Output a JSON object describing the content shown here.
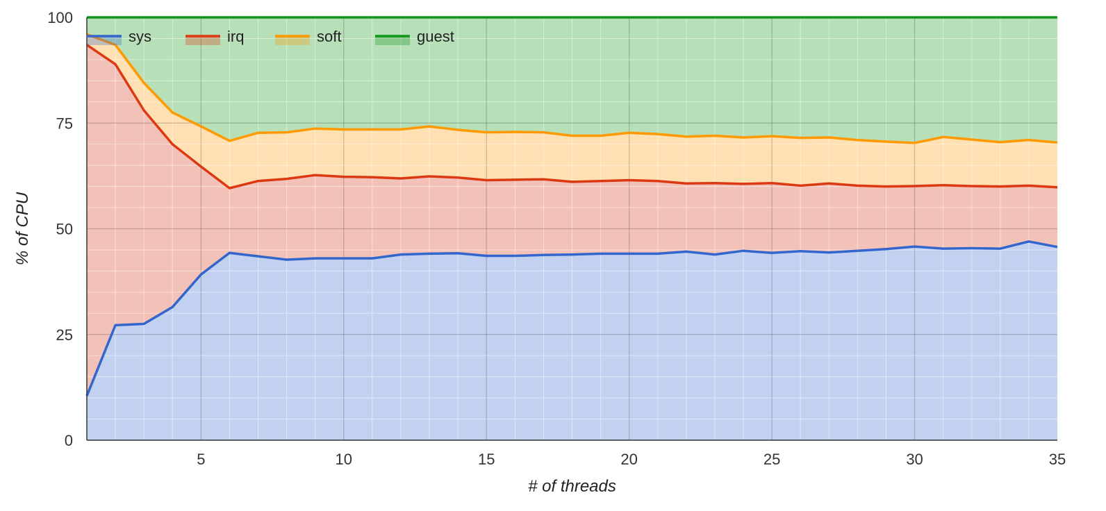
{
  "chart_data": {
    "type": "area",
    "stacked": true,
    "xlabel": "# of threads",
    "ylabel": "% of CPU",
    "xlim": [
      1,
      35
    ],
    "ylim": [
      0,
      100
    ],
    "x_ticks": [
      5,
      10,
      15,
      20,
      25,
      30,
      35
    ],
    "y_ticks": [
      0,
      25,
      50,
      75,
      100
    ],
    "grid": true,
    "legend_position": "top-left",
    "x": [
      1,
      2,
      3,
      4,
      5,
      6,
      7,
      8,
      9,
      10,
      11,
      12,
      13,
      14,
      15,
      16,
      17,
      18,
      19,
      20,
      21,
      22,
      23,
      24,
      25,
      26,
      27,
      28,
      29,
      30,
      31,
      32,
      33,
      34,
      35
    ],
    "series": [
      {
        "name": "sys",
        "color": "#3366cc",
        "fill": "#c3d1f0",
        "values": [
          10.5,
          27.2,
          27.5,
          31.5,
          39.2,
          44.3,
          43.5,
          42.7,
          43.0,
          43.0,
          43.0,
          43.9,
          44.1,
          44.2,
          43.6,
          43.6,
          43.8,
          43.9,
          44.1,
          44.1,
          44.1,
          44.6,
          43.9,
          44.8,
          44.3,
          44.7,
          44.4,
          44.8,
          45.2,
          45.8,
          45.3,
          45.4,
          45.3,
          47.0,
          45.7
        ]
      },
      {
        "name": "irq",
        "color": "#dc3912",
        "fill": "#f2c2b8",
        "values": [
          83.0,
          61.7,
          50.5,
          38.5,
          25.5,
          15.3,
          17.8,
          19.1,
          19.7,
          19.3,
          19.2,
          18.0,
          18.3,
          17.9,
          17.9,
          18.0,
          17.9,
          17.2,
          17.2,
          17.4,
          17.2,
          16.1,
          16.9,
          15.8,
          16.5,
          15.5,
          16.3,
          15.4,
          14.8,
          14.3,
          15.0,
          14.7,
          14.7,
          13.2,
          14.1
        ]
      },
      {
        "name": "soft",
        "color": "#ff9900",
        "fill": "#ffe0b2",
        "values": [
          2.5,
          4.6,
          6.5,
          7.5,
          9.5,
          11.2,
          11.4,
          11.0,
          11.0,
          11.2,
          11.3,
          11.6,
          11.8,
          11.3,
          11.3,
          11.3,
          11.1,
          10.9,
          10.7,
          11.2,
          11.1,
          11.1,
          11.2,
          11.0,
          11.1,
          11.3,
          10.9,
          10.8,
          10.6,
          10.2,
          11.4,
          11.0,
          10.5,
          10.8,
          10.6
        ]
      },
      {
        "name": "guest",
        "color": "#109618",
        "fill": "#b7dfb8",
        "values": [
          4.0,
          6.5,
          15.5,
          22.5,
          25.8,
          29.2,
          27.3,
          27.2,
          26.3,
          26.5,
          26.5,
          26.5,
          25.8,
          26.6,
          27.2,
          27.1,
          27.2,
          28.0,
          28.0,
          27.3,
          27.6,
          28.2,
          28.0,
          28.4,
          28.1,
          28.5,
          28.4,
          29.0,
          29.4,
          29.7,
          28.3,
          28.9,
          29.5,
          29.0,
          29.6
        ]
      }
    ]
  }
}
